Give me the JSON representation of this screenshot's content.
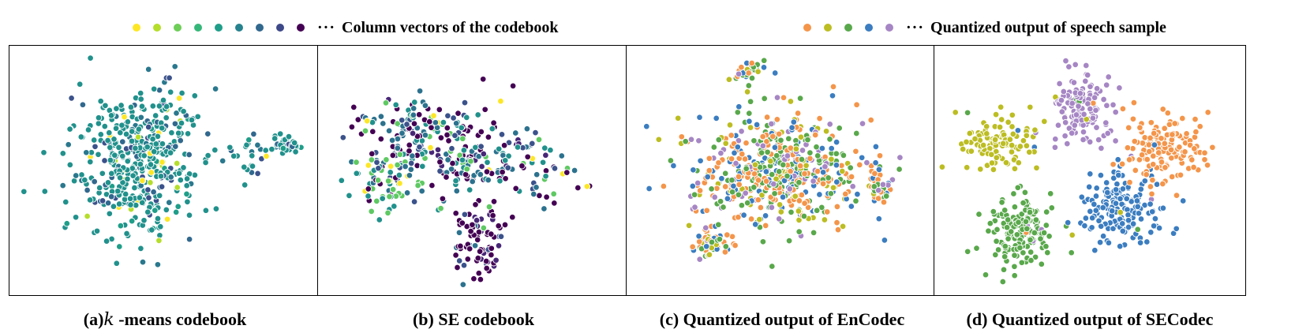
{
  "legend_left": {
    "label": "Column vectors of the codebook",
    "ellipsis": "···",
    "colors": [
      "#fde725",
      "#b5de2b",
      "#6ece58",
      "#35b779",
      "#1f9e89",
      "#26828e",
      "#31688e",
      "#3e4989",
      "#440154"
    ]
  },
  "legend_right": {
    "label": "Quantized output of speech sample",
    "ellipsis": "···",
    "colors": [
      "#f4954a",
      "#bcbd22",
      "#59a84b",
      "#3b7dc0",
      "#a686c4"
    ]
  },
  "captions": {
    "a_prefix": "(a)",
    "a_k": "k",
    "a_suffix": " -means codebook",
    "b": "(b) SE codebook",
    "c": "(c) Quantized output of EnCodec",
    "d": "(d) Quantized output of SECodec"
  },
  "chart_data": [
    {
      "type": "scatter",
      "panel": "a",
      "title": "(a) k -means codebook",
      "description_points": "t-SNE of k-means codebook column vectors, mostly teal with scattered yellow points, two dense clusters on the right",
      "colors": [
        "#fde725",
        "#b5de2b",
        "#21918c",
        "#2a788e",
        "#31688e",
        "#3b528b",
        "#1f9e89"
      ],
      "weights": [
        3,
        3,
        62,
        10,
        8,
        8,
        6
      ],
      "n": 520
    },
    {
      "type": "scatter",
      "panel": "b",
      "title": "(b) SE codebook",
      "colors": [
        "#440154",
        "#482777",
        "#3b528b",
        "#2c728e",
        "#21918c",
        "#5ec962",
        "#fde725"
      ],
      "weights": [
        38,
        6,
        12,
        20,
        12,
        9,
        3
      ],
      "n": 460
    },
    {
      "type": "scatter",
      "panel": "c",
      "title": "(c) Quantized output of EnCodec",
      "colors": [
        "#f4954a",
        "#bcbd22",
        "#59a84b",
        "#3b7dc0",
        "#a686c4"
      ],
      "weights": [
        30,
        12,
        28,
        18,
        12
      ],
      "n": 700
    },
    {
      "type": "scatter",
      "panel": "d",
      "title": "(d) Quantized output of SECodec",
      "colors": [
        "#f4954a",
        "#bcbd22",
        "#59a84b",
        "#3b7dc0",
        "#a686c4"
      ],
      "weights": [
        22,
        18,
        22,
        20,
        18
      ],
      "n": 720
    }
  ]
}
